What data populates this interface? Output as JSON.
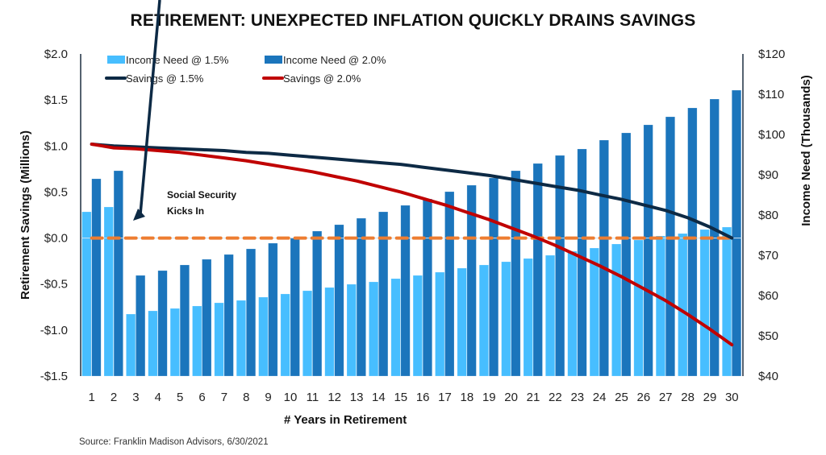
{
  "chart_data": {
    "type": "bar",
    "title": "RETIREMENT: UNEXPECTED INFLATION QUICKLY DRAINS SAVINGS",
    "xlabel": "# Years in Retirement",
    "ylabel_left": "Retirement Savings (Millions)",
    "ylabel_right": "Income Need (Thousands)",
    "categories": [
      "1",
      "2",
      "3",
      "4",
      "5",
      "6",
      "7",
      "8",
      "9",
      "10",
      "11",
      "12",
      "13",
      "14",
      "15",
      "16",
      "17",
      "18",
      "19",
      "20",
      "21",
      "22",
      "23",
      "24",
      "25",
      "26",
      "27",
      "28",
      "29",
      "30"
    ],
    "left_axis": {
      "ylim": [
        -1.5,
        2.0
      ],
      "ticks": [
        2.0,
        1.5,
        1.0,
        0.5,
        0.0,
        -0.5,
        -1.0,
        -1.5
      ],
      "tick_labels": [
        "$2.0",
        "$1.5",
        "$1.0",
        "$0.5",
        "$0.0",
        "-$0.5",
        "-$1.0",
        "-$1.5"
      ]
    },
    "right_axis": {
      "ylim": [
        40,
        120
      ],
      "ticks": [
        120,
        110,
        100,
        90,
        80,
        70,
        60,
        50,
        40
      ],
      "tick_labels": [
        "$120",
        "$110",
        "$100",
        "$90",
        "$80",
        "$70",
        "$60",
        "$50",
        "$40"
      ]
    },
    "series": [
      {
        "name": "Income Need @ 1.5%",
        "kind": "bar",
        "axis": "right",
        "color": "#47BEFF",
        "values": [
          80.8,
          82.0,
          55.4,
          56.2,
          56.8,
          57.4,
          58.2,
          58.8,
          59.6,
          60.4,
          61.2,
          62.0,
          62.8,
          63.4,
          64.2,
          65.0,
          65.8,
          66.8,
          67.6,
          68.4,
          69.2,
          70.0,
          71.0,
          71.8,
          72.8,
          73.8,
          74.8,
          75.4,
          76.4,
          77.0
        ]
      },
      {
        "name": "Income Need @ 2.0%",
        "kind": "bar",
        "axis": "right",
        "color": "#1B75BC",
        "values": [
          89.0,
          91.0,
          65.0,
          66.2,
          67.6,
          69.0,
          70.2,
          71.6,
          73.0,
          74.4,
          76.0,
          77.6,
          79.2,
          80.8,
          82.4,
          84.0,
          85.8,
          87.4,
          89.2,
          91.0,
          92.8,
          94.8,
          96.4,
          98.6,
          100.4,
          102.4,
          104.4,
          106.6,
          108.8,
          111.0
        ]
      },
      {
        "name": "Savings @ 1.5%",
        "kind": "line",
        "axis": "left",
        "color": "#0D2A45",
        "values": [
          1.02,
          1.0,
          0.99,
          0.98,
          0.97,
          0.96,
          0.95,
          0.93,
          0.92,
          0.9,
          0.88,
          0.86,
          0.84,
          0.82,
          0.8,
          0.77,
          0.74,
          0.71,
          0.68,
          0.64,
          0.6,
          0.56,
          0.52,
          0.47,
          0.42,
          0.36,
          0.3,
          0.22,
          0.12,
          0.0
        ]
      },
      {
        "name": "Savings @ 2.0%",
        "kind": "line",
        "axis": "left",
        "color": "#C00000",
        "values": [
          1.02,
          0.98,
          0.97,
          0.95,
          0.93,
          0.9,
          0.87,
          0.84,
          0.8,
          0.76,
          0.72,
          0.67,
          0.62,
          0.56,
          0.5,
          0.43,
          0.36,
          0.28,
          0.2,
          0.11,
          0.02,
          -0.08,
          -0.19,
          -0.3,
          -0.42,
          -0.55,
          -0.68,
          -0.83,
          -0.99,
          -1.16
        ]
      }
    ],
    "reference_line": {
      "name": "Zero savings",
      "axis": "left",
      "value": 0.0,
      "color": "#ED7D31",
      "style": "dashed"
    },
    "annotations": [
      {
        "text_lines": [
          "Social Security",
          "Kicks In"
        ],
        "points_to_category": "2"
      }
    ],
    "legend": {
      "placement": "top-left",
      "items": [
        {
          "label": "Income Need @ 1.5%",
          "swatch": "box",
          "color": "#47BEFF"
        },
        {
          "label": "Income Need @ 2.0%",
          "swatch": "box",
          "color": "#1B75BC"
        },
        {
          "label": "Savings @ 1.5%",
          "swatch": "line",
          "color": "#0D2A45"
        },
        {
          "label": "Savings @ 2.0%",
          "swatch": "line",
          "color": "#C00000"
        }
      ]
    },
    "grid": false
  },
  "footer": {
    "source": "Source: Franklin  Madison Advisors, 6/30/2021"
  }
}
